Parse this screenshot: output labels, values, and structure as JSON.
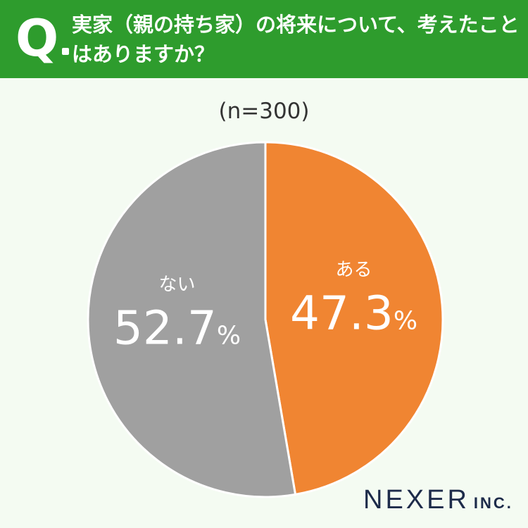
{
  "header": {
    "q_mark": "Q",
    "question": "実家（親の持ち家）の将来について、考えたことはありますか？"
  },
  "sample_size": "(n=300)",
  "brand": {
    "name": "NEXER",
    "suffix": "INC."
  },
  "colors": {
    "header": "#2e9c2d",
    "yes": "#f08532",
    "no": "#a0a0a0",
    "background": "#f4fbf2"
  },
  "chart_data": {
    "type": "pie",
    "title": "",
    "slices": [
      {
        "label": "ある",
        "value": 47.3,
        "display": "47.3",
        "unit": "%",
        "color": "#f08532"
      },
      {
        "label": "ない",
        "value": 52.7,
        "display": "52.7",
        "unit": "%",
        "color": "#a0a0a0"
      }
    ],
    "start": "12 o'clock",
    "direction": "clockwise"
  }
}
